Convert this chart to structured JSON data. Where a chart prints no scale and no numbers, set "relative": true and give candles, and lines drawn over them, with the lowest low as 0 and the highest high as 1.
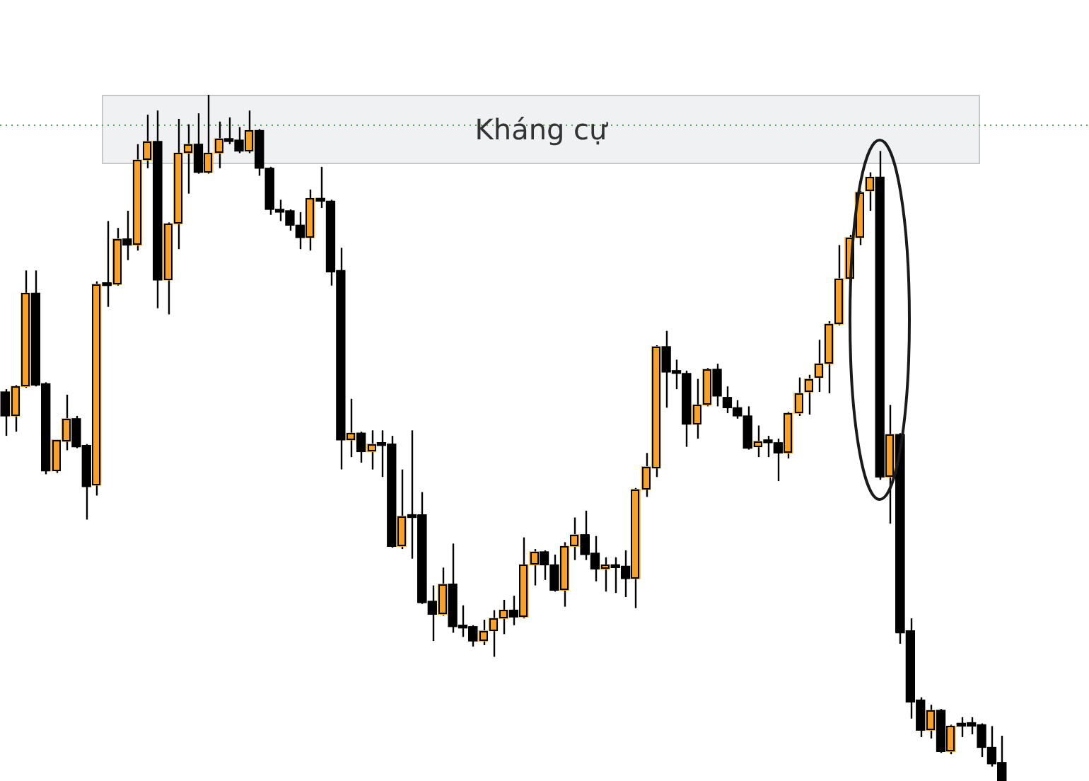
{
  "chart_data": {
    "type": "candlestick",
    "relative": true,
    "categories": [
      null,
      null,
      null,
      null,
      null,
      null,
      null,
      null,
      null,
      null,
      null,
      null,
      null,
      null,
      null,
      null,
      null,
      null,
      null,
      null,
      null,
      null,
      null,
      null,
      null,
      null,
      null,
      null,
      null,
      null,
      null,
      null,
      null,
      null,
      null,
      null,
      null,
      null,
      null,
      null,
      null,
      null,
      null,
      null,
      null,
      null,
      null,
      null,
      null,
      null,
      null,
      null,
      null,
      null,
      null,
      null,
      null,
      null,
      null,
      null,
      null,
      null,
      null,
      null,
      null,
      null,
      null,
      null,
      null,
      null,
      null,
      null,
      null,
      null,
      null,
      null,
      null,
      null,
      null,
      null,
      null,
      null,
      null,
      null,
      null,
      null,
      null,
      null,
      null,
      null,
      null,
      null,
      null,
      null,
      null,
      null,
      null,
      null,
      null
    ],
    "ohlc": [
      [
        0.567,
        0.571,
        0.503,
        0.532
      ],
      [
        0.532,
        0.577,
        0.509,
        0.575
      ],
      [
        0.575,
        0.744,
        0.573,
        0.711
      ],
      [
        0.711,
        0.744,
        0.575,
        0.577
      ],
      [
        0.579,
        0.581,
        0.447,
        0.452
      ],
      [
        0.452,
        0.497,
        0.449,
        0.497
      ],
      [
        0.495,
        0.563,
        0.482,
        0.528
      ],
      [
        0.528,
        0.532,
        0.485,
        0.487
      ],
      [
        0.489,
        0.491,
        0.381,
        0.429
      ],
      [
        0.431,
        0.728,
        0.416,
        0.724
      ],
      [
        0.724,
        0.816,
        0.691,
        0.722
      ],
      [
        0.724,
        0.806,
        0.722,
        0.79
      ],
      [
        0.79,
        0.831,
        0.759,
        0.781
      ],
      [
        0.781,
        0.928,
        0.773,
        0.905
      ],
      [
        0.905,
        0.971,
        0.893,
        0.932
      ],
      [
        0.932,
        0.977,
        0.689,
        0.73
      ],
      [
        0.73,
        0.814,
        0.68,
        0.812
      ],
      [
        0.812,
        0.965,
        0.775,
        0.915
      ],
      [
        0.915,
        0.957,
        0.856,
        0.928
      ],
      [
        0.928,
        0.973,
        0.885,
        0.887
      ],
      [
        0.887,
        1,
        0.885,
        0.915
      ],
      [
        0.915,
        0.961,
        0.893,
        0.936
      ],
      [
        0.934,
        0.967,
        0.928,
        0.932
      ],
      [
        0.934,
        0.953,
        0.915,
        0.918
      ],
      [
        0.918,
        0.977,
        0.915,
        0.948
      ],
      [
        0.948,
        0.95,
        0.882,
        0.893
      ],
      [
        0.893,
        0.895,
        0.825,
        0.833
      ],
      [
        0.833,
        0.847,
        0.816,
        0.829
      ],
      [
        0.831,
        0.833,
        0.802,
        0.81
      ],
      [
        0.81,
        0.829,
        0.775,
        0.792
      ],
      [
        0.792,
        0.862,
        0.773,
        0.849
      ],
      [
        0.849,
        0.895,
        0.835,
        0.845
      ],
      [
        0.845,
        0.847,
        0.722,
        0.742
      ],
      [
        0.744,
        0.777,
        0.454,
        0.497
      ],
      [
        0.497,
        0.557,
        0.472,
        0.507
      ],
      [
        0.507,
        0.509,
        0.464,
        0.48
      ],
      [
        0.48,
        0.511,
        0.454,
        0.491
      ],
      [
        0.491,
        0.511,
        0.443,
        0.489
      ],
      [
        0.491,
        0.503,
        0.34,
        0.342
      ],
      [
        0.342,
        0.454,
        0.338,
        0.386
      ],
      [
        0.388,
        0.511,
        0.324,
        0.384
      ],
      [
        0.388,
        0.421,
        0.258,
        0.26
      ],
      [
        0.262,
        0.285,
        0.204,
        0.243
      ],
      [
        0.243,
        0.311,
        0.241,
        0.287
      ],
      [
        0.287,
        0.346,
        0.216,
        0.225
      ],
      [
        0.227,
        0.256,
        0.21,
        0.223
      ],
      [
        0.225,
        0.227,
        0.196,
        0.204
      ],
      [
        0.204,
        0.235,
        0.198,
        0.219
      ],
      [
        0.219,
        0.249,
        0.181,
        0.237
      ],
      [
        0.237,
        0.264,
        0.214,
        0.249
      ],
      [
        0.249,
        0.27,
        0.227,
        0.239
      ],
      [
        0.239,
        0.355,
        0.237,
        0.315
      ],
      [
        0.315,
        0.338,
        0.285,
        0.334
      ],
      [
        0.334,
        0.336,
        0.293,
        0.315
      ],
      [
        0.315,
        0.33,
        0.276,
        0.278
      ],
      [
        0.278,
        0.348,
        0.254,
        0.342
      ],
      [
        0.342,
        0.384,
        0.322,
        0.359
      ],
      [
        0.359,
        0.394,
        0.322,
        0.33
      ],
      [
        0.332,
        0.357,
        0.291,
        0.309
      ],
      [
        0.309,
        0.326,
        0.276,
        0.315
      ],
      [
        0.315,
        0.326,
        0.274,
        0.311
      ],
      [
        0.313,
        0.336,
        0.268,
        0.295
      ],
      [
        0.295,
        0.427,
        0.252,
        0.425
      ],
      [
        0.425,
        0.478,
        0.414,
        0.458
      ],
      [
        0.456,
        0.635,
        0.443,
        0.633
      ],
      [
        0.633,
        0.656,
        0.544,
        0.596
      ],
      [
        0.596,
        0.614,
        0.571,
        0.594
      ],
      [
        0.594,
        0.598,
        0.487,
        0.52
      ],
      [
        0.52,
        0.586,
        0.499,
        0.548
      ],
      [
        0.548,
        0.602,
        0.546,
        0.6
      ],
      [
        0.6,
        0.608,
        0.546,
        0.561
      ],
      [
        0.559,
        0.575,
        0.536,
        0.544
      ],
      [
        0.544,
        0.555,
        0.528,
        0.532
      ],
      [
        0.532,
        0.546,
        0.483,
        0.485
      ],
      [
        0.487,
        0.518,
        0.472,
        0.495
      ],
      [
        0.495,
        0.503,
        0.472,
        0.493
      ],
      [
        0.493,
        0.499,
        0.437,
        0.478
      ],
      [
        0.478,
        0.538,
        0.47,
        0.536
      ],
      [
        0.536,
        0.588,
        0.532,
        0.565
      ],
      [
        0.567,
        0.592,
        0.534,
        0.586
      ],
      [
        0.588,
        0.643,
        0.567,
        0.608
      ],
      [
        0.608,
        0.67,
        0.565,
        0.666
      ],
      [
        0.666,
        0.781,
        0.664,
        0.732
      ],
      [
        0.732,
        0.796,
        0.73,
        0.792
      ],
      [
        0.792,
        0.86,
        0.781,
        0.858
      ],
      [
        0.86,
        0.887,
        0.831,
        0.88
      ],
      [
        0.88,
        0.918,
        0.439,
        0.443
      ],
      [
        0.443,
        0.548,
        0.375,
        0.505
      ],
      [
        0.505,
        0.507,
        0.2,
        0.216
      ],
      [
        0.219,
        0.237,
        0.091,
        0.115
      ],
      [
        0.118,
        0.122,
        0.064,
        0.074
      ],
      [
        0.074,
        0.111,
        0.062,
        0.103
      ],
      [
        0.103,
        0.105,
        0.041,
        0.043
      ],
      [
        0.043,
        0.082,
        0.039,
        0.08
      ],
      [
        0.082,
        0.093,
        0.064,
        0.08
      ],
      [
        0.085,
        0.093,
        0.068,
        0.08
      ],
      [
        0.082,
        0.084,
        0.035,
        0.049
      ],
      [
        0.049,
        0.08,
        0.021,
        0.025
      ],
      [
        0.027,
        0.066,
        0,
        0
      ]
    ],
    "colors": [
      "#000000",
      "#f4a12f",
      "#f4a12f",
      "#000000",
      "#000000",
      "#f4a12f",
      "#f4a12f",
      "#000000",
      "#000000",
      "#f4a12f",
      "#000000",
      "#f4a12f",
      "#000000",
      "#f4a12f",
      "#f4a12f",
      "#000000",
      "#f4a12f",
      "#f4a12f",
      "#f4a12f",
      "#000000",
      "#f4a12f",
      "#f4a12f",
      "#000000",
      "#000000",
      "#f4a12f",
      "#000000",
      "#000000",
      "#000000",
      "#000000",
      "#000000",
      "#f4a12f",
      "#000000",
      "#000000",
      "#000000",
      "#f4a12f",
      "#000000",
      "#f4a12f",
      "#000000",
      "#000000",
      "#f4a12f",
      "#000000",
      "#000000",
      "#000000",
      "#f4a12f",
      "#000000",
      "#000000",
      "#000000",
      "#f4a12f",
      "#f4a12f",
      "#f4a12f",
      "#000000",
      "#f4a12f",
      "#f4a12f",
      "#000000",
      "#000000",
      "#f4a12f",
      "#f4a12f",
      "#000000",
      "#000000",
      "#f4a12f",
      "#000000",
      "#000000",
      "#f4a12f",
      "#f4a12f",
      "#f4a12f",
      "#000000",
      "#000000",
      "#000000",
      "#f4a12f",
      "#f4a12f",
      "#000000",
      "#000000",
      "#000000",
      "#000000",
      "#f4a12f",
      "#000000",
      "#000000",
      "#f4a12f",
      "#f4a12f",
      "#f4a12f",
      "#f4a12f",
      "#f4a12f",
      "#f4a12f",
      "#f4a12f",
      "#f4a12f",
      "#f4a12f",
      "#000000",
      "#f4a12f",
      "#000000",
      "#000000",
      "#000000",
      "#f4a12f",
      "#000000",
      "#f4a12f",
      "#000000",
      "#000000",
      "#000000",
      "#000000",
      "#000000"
    ],
    "bands": [
      {
        "axis": "y",
        "from": 0.899,
        "to": 1,
        "label": "Kháng cự",
        "color": "#eff1f2"
      }
    ],
    "ref_lines": [
      {
        "axis": "y",
        "value": 0.957,
        "color": "#5f9f5f",
        "line_style": "dotted"
      }
    ]
  }
}
